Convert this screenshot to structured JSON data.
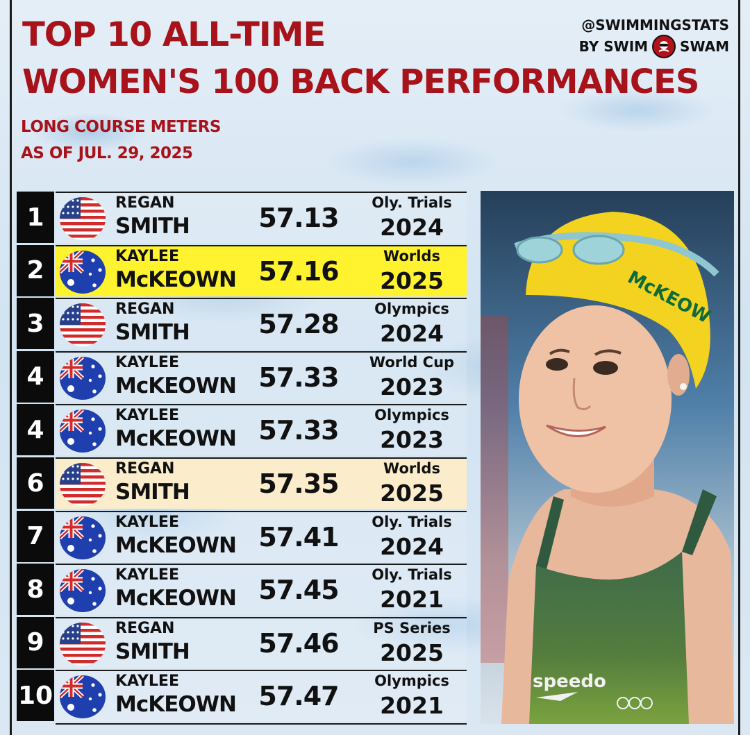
{
  "header": {
    "title_line1": "TOP 10 ALL-TIME",
    "title_line2": "WOMEN'S 100 BACK PERFORMANCES",
    "subtitle_line1": "LONG COURSE METERS",
    "subtitle_line2": "AS OF JUL. 29, 2025"
  },
  "brand": {
    "handle": "@SWIMMINGSTATS",
    "by_left": "BY SWIM",
    "by_right": "SWAM"
  },
  "colors": {
    "title_red": "#a8121a",
    "highlight_yellow": "#fff22e",
    "highlight_cream": "#fbedcc"
  },
  "rows": [
    {
      "rank": "1",
      "flag": "usa-flag-icon",
      "first": "REGAN",
      "last": "SMITH",
      "time": "57.13",
      "meet": "Oly. Trials",
      "year": "2024"
    },
    {
      "rank": "2",
      "flag": "australia-flag-icon",
      "first": "KAYLEE",
      "last": "McKEOWN",
      "time": "57.16",
      "meet": "Worlds",
      "year": "2025"
    },
    {
      "rank": "3",
      "flag": "usa-flag-icon",
      "first": "REGAN",
      "last": "SMITH",
      "time": "57.28",
      "meet": "Olympics",
      "year": "2024"
    },
    {
      "rank": "4",
      "flag": "australia-flag-icon",
      "first": "KAYLEE",
      "last": "McKEOWN",
      "time": "57.33",
      "meet": "World Cup",
      "year": "2023"
    },
    {
      "rank": "4",
      "flag": "australia-flag-icon",
      "first": "KAYLEE",
      "last": "McKEOWN",
      "time": "57.33",
      "meet": "Olympics",
      "year": "2023"
    },
    {
      "rank": "6",
      "flag": "usa-flag-icon",
      "first": "REGAN",
      "last": "SMITH",
      "time": "57.35",
      "meet": "Worlds",
      "year": "2025"
    },
    {
      "rank": "7",
      "flag": "australia-flag-icon",
      "first": "KAYLEE",
      "last": "McKEOWN",
      "time": "57.41",
      "meet": "Oly. Trials",
      "year": "2024"
    },
    {
      "rank": "8",
      "flag": "australia-flag-icon",
      "first": "KAYLEE",
      "last": "McKEOWN",
      "time": "57.45",
      "meet": "Oly. Trials",
      "year": "2021"
    },
    {
      "rank": "9",
      "flag": "usa-flag-icon",
      "first": "REGAN",
      "last": "SMITH",
      "time": "57.46",
      "meet": "PS Series",
      "year": "2025"
    },
    {
      "rank": "10",
      "flag": "australia-flag-icon",
      "first": "KAYLEE",
      "last": "McKEOWN",
      "time": "57.47",
      "meet": "Olympics",
      "year": "2021"
    }
  ],
  "photo": {
    "description_icon": "swimmer-photo",
    "cap_text": "McKEOW",
    "suit_brand": "speedo"
  }
}
